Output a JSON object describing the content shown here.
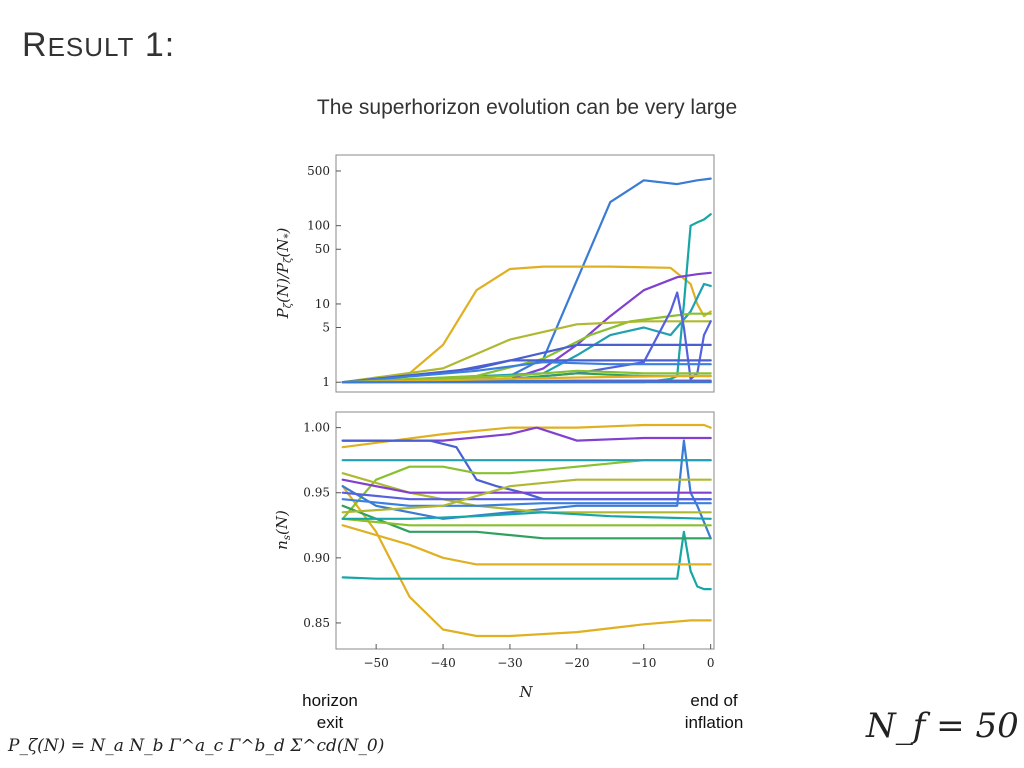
{
  "slide": {
    "title_first": "R",
    "title_rest": "ESULT",
    "title_num": " 1:",
    "subtitle": "The superhorizon evolution can be very large"
  },
  "annotations": {
    "left_label_line1": "horizon",
    "left_label_line2": "exit",
    "right_label_line1": "end of",
    "right_label_line2": "inflation",
    "formula": "P_ζ(N) = N_a N_b Γ^a_c Γ^b_d Σ^cd(N_0)",
    "nf": "N_f = 50"
  },
  "chart_data": [
    {
      "type": "line",
      "panel": "top",
      "title": "",
      "xlabel": "",
      "ylabel": "P_ζ(N)/P_ζ(N_*)",
      "yscale": "log",
      "xlim": [
        -56,
        0.5
      ],
      "ylim": [
        0.75,
        800
      ],
      "y_ticks": [
        1,
        5,
        10,
        50,
        100,
        500
      ],
      "y_tick_labels": [
        "1",
        "5",
        "10",
        "50",
        "100",
        "500"
      ],
      "grid": false,
      "series": [
        {
          "name": "s1",
          "color": "#3a7bd5",
          "x": [
            -55,
            -30,
            -25,
            -20,
            -15,
            -10,
            -5,
            -2,
            0
          ],
          "y": [
            1,
            1.2,
            2,
            20,
            200,
            380,
            340,
            380,
            400
          ]
        },
        {
          "name": "s2",
          "color": "#e0b020",
          "x": [
            -55,
            -45,
            -40,
            -35,
            -30,
            -25,
            -15,
            -6,
            -3,
            -2,
            -1,
            0
          ],
          "y": [
            1,
            1.3,
            3,
            15,
            28,
            30,
            30,
            29,
            18,
            10,
            7,
            8
          ]
        },
        {
          "name": "s3",
          "color": "#17a6a6",
          "x": [
            -55,
            -10,
            -6,
            -5,
            -4,
            -3,
            -2,
            -1,
            0
          ],
          "y": [
            1,
            1,
            1.1,
            1.2,
            10,
            100,
            110,
            120,
            140
          ]
        },
        {
          "name": "s4",
          "color": "#8040d0",
          "x": [
            -55,
            -30,
            -25,
            -20,
            -15,
            -10,
            -5,
            -2,
            0
          ],
          "y": [
            1,
            1.1,
            1.5,
            3,
            7,
            15,
            22,
            24,
            25
          ]
        },
        {
          "name": "s5",
          "color": "#20a0b0",
          "x": [
            -55,
            -25,
            -20,
            -15,
            -10,
            -6,
            -3,
            -1,
            0
          ],
          "y": [
            1,
            1.3,
            2.2,
            4,
            5,
            4,
            8,
            18,
            17
          ]
        },
        {
          "name": "s6",
          "color": "#88c030",
          "x": [
            -55,
            -35,
            -25,
            -18,
            -12,
            -6,
            -3,
            0
          ],
          "y": [
            1,
            1.2,
            2,
            4,
            6,
            7,
            7.5,
            7.5
          ]
        },
        {
          "name": "s7",
          "color": "#b0b830",
          "x": [
            -55,
            -40,
            -30,
            -20,
            -10,
            -3,
            0
          ],
          "y": [
            1,
            1.5,
            3.5,
            5.5,
            6,
            6,
            6
          ]
        },
        {
          "name": "s8",
          "color": "#5560e0",
          "x": [
            -55,
            -30,
            -20,
            -10,
            -6,
            -5,
            -4,
            -3,
            -2,
            -1,
            0
          ],
          "y": [
            1,
            1.1,
            1.3,
            1.8,
            8,
            14,
            5,
            1.1,
            1.3,
            4,
            6
          ]
        },
        {
          "name": "s9",
          "color": "#4a5fd0",
          "x": [
            -55,
            -35,
            -20,
            -10,
            0
          ],
          "y": [
            1,
            1.5,
            3,
            3,
            3
          ]
        },
        {
          "name": "s10",
          "color": "#4a5fd0",
          "x": [
            -55,
            -40,
            -30,
            -20,
            -10,
            0
          ],
          "y": [
            1,
            1.3,
            1.9,
            1.9,
            1.9,
            1.9
          ]
        },
        {
          "name": "s11",
          "color": "#3a80e0",
          "x": [
            -55,
            -35,
            -25,
            -15,
            0
          ],
          "y": [
            1,
            1.4,
            1.8,
            1.7,
            1.7
          ]
        },
        {
          "name": "s12",
          "color": "#88c030",
          "x": [
            -55,
            -30,
            -20,
            -10,
            0
          ],
          "y": [
            1,
            1.2,
            1.4,
            1.3,
            1.3
          ]
        },
        {
          "name": "s13",
          "color": "#30a060",
          "x": [
            -55,
            -30,
            -20,
            -10,
            0
          ],
          "y": [
            1,
            1.1,
            1.3,
            1.2,
            1.2
          ]
        },
        {
          "name": "s14",
          "color": "#20a0b0",
          "x": [
            -55,
            -20,
            0
          ],
          "y": [
            1,
            1.05,
            1.05
          ]
        },
        {
          "name": "s15",
          "color": "#8040d0",
          "x": [
            -55,
            -20,
            0
          ],
          "y": [
            1,
            1.02,
            1.02
          ]
        },
        {
          "name": "s16",
          "color": "#e0b020",
          "x": [
            -55,
            -20,
            -5,
            0
          ],
          "y": [
            1,
            1.15,
            1.2,
            1.2
          ]
        },
        {
          "name": "s17",
          "color": "#3a7bd5",
          "x": [
            -55,
            -20,
            0
          ],
          "y": [
            1,
            1,
            1
          ]
        }
      ]
    },
    {
      "type": "line",
      "panel": "bottom",
      "title": "",
      "xlabel": "N",
      "ylabel": "n_s(N)",
      "xlim": [
        -56,
        0.5
      ],
      "ylim": [
        0.83,
        1.012
      ],
      "x_ticks": [
        -50,
        -40,
        -30,
        -20,
        -10,
        0
      ],
      "x_tick_labels": [
        "−50",
        "−40",
        "−30",
        "−20",
        "−10",
        "0"
      ],
      "y_ticks": [
        0.85,
        0.9,
        0.95,
        1.0
      ],
      "y_tick_labels": [
        "0.85",
        "0.90",
        "0.95",
        "1.00"
      ],
      "grid": false,
      "series": [
        {
          "name": "b1",
          "color": "#e0b020",
          "x": [
            -55,
            -50,
            -45,
            -40,
            -35,
            -30,
            -20,
            -10,
            -3,
            0
          ],
          "y": [
            0.955,
            0.92,
            0.87,
            0.845,
            0.84,
            0.84,
            0.843,
            0.849,
            0.852,
            0.852
          ]
        },
        {
          "name": "b2",
          "color": "#e0b020",
          "x": [
            -55,
            -40,
            -30,
            -20,
            -10,
            -1,
            0
          ],
          "y": [
            0.985,
            0.995,
            1.0,
            1.0,
            1.002,
            1.002,
            1.0
          ]
        },
        {
          "name": "b3",
          "color": "#8040d0",
          "x": [
            -55,
            -40,
            -30,
            -26,
            -20,
            -10,
            0
          ],
          "y": [
            0.99,
            0.99,
            0.995,
            1.0,
            0.99,
            0.992,
            0.992
          ]
        },
        {
          "name": "b4",
          "color": "#4a5fd0",
          "x": [
            -55,
            -50,
            -42,
            -38,
            -35,
            -32,
            -28,
            -25,
            -20,
            -10,
            0
          ],
          "y": [
            0.99,
            0.99,
            0.99,
            0.985,
            0.96,
            0.955,
            0.95,
            0.945,
            0.945,
            0.945,
            0.945
          ]
        },
        {
          "name": "b5",
          "color": "#17a6a6",
          "x": [
            -55,
            -50,
            -10,
            -5,
            -4,
            -3,
            -2,
            -1,
            0
          ],
          "y": [
            0.885,
            0.884,
            0.884,
            0.884,
            0.92,
            0.89,
            0.878,
            0.876,
            0.876
          ]
        },
        {
          "name": "b6",
          "color": "#88c030",
          "x": [
            -55,
            -50,
            -45,
            -40,
            -35,
            -30,
            -20,
            -10,
            0
          ],
          "y": [
            0.93,
            0.96,
            0.97,
            0.97,
            0.965,
            0.965,
            0.97,
            0.975,
            0.975
          ]
        },
        {
          "name": "b7",
          "color": "#3a7bd5",
          "x": [
            -55,
            -50,
            -40,
            -30,
            -20,
            -10,
            -5,
            -4,
            -3,
            -2,
            0
          ],
          "y": [
            0.955,
            0.94,
            0.93,
            0.935,
            0.94,
            0.94,
            0.94,
            0.99,
            0.95,
            0.94,
            0.915
          ]
        },
        {
          "name": "b8",
          "color": "#20a0b0",
          "x": [
            -55,
            -40,
            -20,
            0
          ],
          "y": [
            0.975,
            0.975,
            0.975,
            0.975
          ]
        },
        {
          "name": "b9",
          "color": "#b0b830",
          "x": [
            -55,
            -45,
            -35,
            -25,
            -15,
            -5,
            0
          ],
          "y": [
            0.965,
            0.95,
            0.94,
            0.935,
            0.935,
            0.935,
            0.935
          ]
        },
        {
          "name": "b10",
          "color": "#e0b020",
          "x": [
            -55,
            -45,
            -40,
            -35,
            -20,
            -10,
            0
          ],
          "y": [
            0.925,
            0.91,
            0.9,
            0.895,
            0.895,
            0.895,
            0.895
          ]
        },
        {
          "name": "b11",
          "color": "#30a060",
          "x": [
            -55,
            -45,
            -35,
            -25,
            -15,
            0
          ],
          "y": [
            0.94,
            0.92,
            0.92,
            0.915,
            0.915,
            0.915
          ]
        },
        {
          "name": "b12",
          "color": "#5560e0",
          "x": [
            -55,
            -45,
            -35,
            -25,
            -15,
            0
          ],
          "y": [
            0.95,
            0.945,
            0.945,
            0.945,
            0.945,
            0.945
          ]
        },
        {
          "name": "b13",
          "color": "#88c030",
          "x": [
            -55,
            -45,
            -35,
            -25,
            -15,
            -5,
            0
          ],
          "y": [
            0.93,
            0.925,
            0.925,
            0.925,
            0.925,
            0.925,
            0.925
          ]
        },
        {
          "name": "b14",
          "color": "#8040d0",
          "x": [
            -55,
            -45,
            -35,
            -25,
            -15,
            -5,
            0
          ],
          "y": [
            0.96,
            0.95,
            0.95,
            0.95,
            0.95,
            0.95,
            0.95
          ]
        },
        {
          "name": "b15",
          "color": "#17a6a6",
          "x": [
            -55,
            -45,
            -35,
            -25,
            -15,
            0
          ],
          "y": [
            0.93,
            0.93,
            0.932,
            0.935,
            0.932,
            0.93
          ]
        },
        {
          "name": "b16",
          "color": "#3a80e0",
          "x": [
            -55,
            -45,
            -35,
            -25,
            -15,
            0
          ],
          "y": [
            0.945,
            0.94,
            0.94,
            0.942,
            0.942,
            0.942
          ]
        },
        {
          "name": "b17",
          "color": "#b0b830",
          "x": [
            -55,
            -40,
            -30,
            -20,
            -10,
            0
          ],
          "y": [
            0.935,
            0.94,
            0.955,
            0.96,
            0.96,
            0.96
          ]
        }
      ]
    }
  ]
}
